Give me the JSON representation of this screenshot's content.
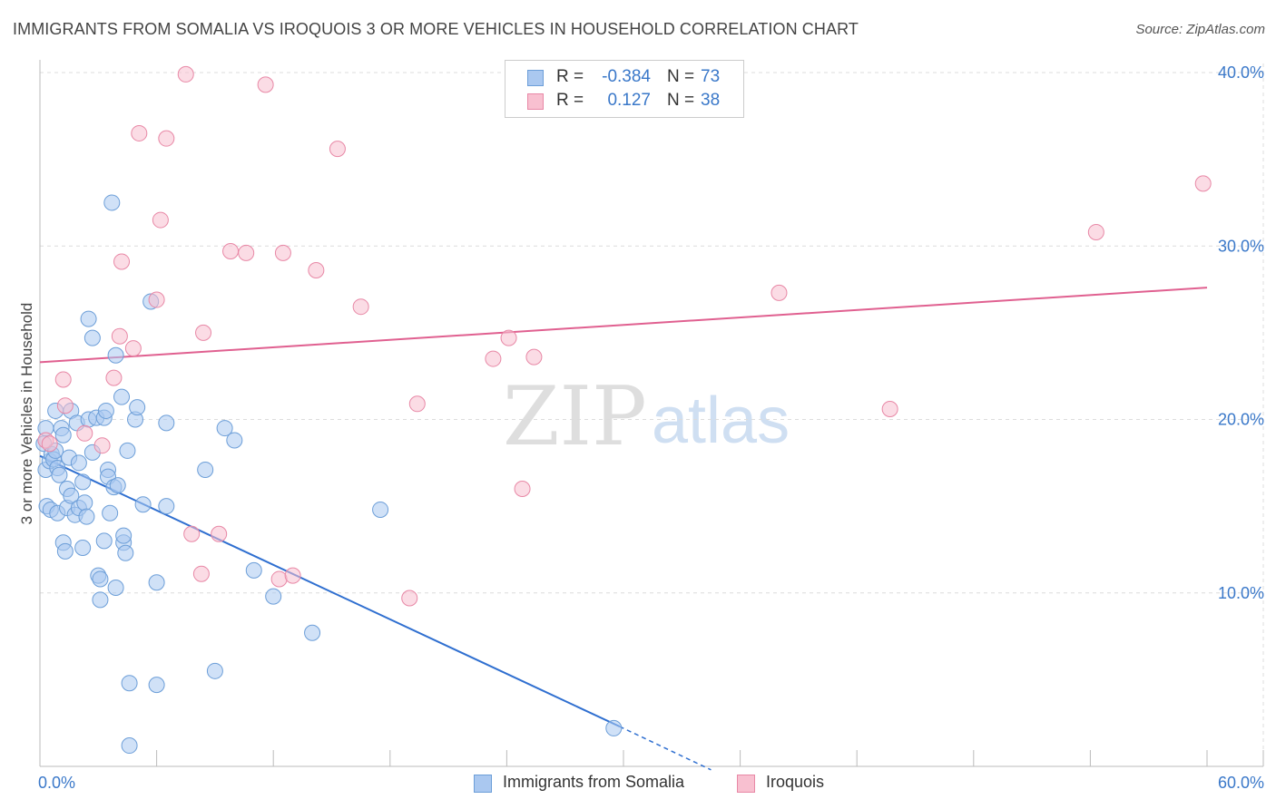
{
  "title": "IMMIGRANTS FROM SOMALIA VS IROQUOIS 3 OR MORE VEHICLES IN HOUSEHOLD CORRELATION CHART",
  "source": "Source: ZipAtlas.com",
  "watermark": {
    "zip": "ZIP",
    "atlas": "atlas"
  },
  "legend_top": [
    {
      "r_label": "R =",
      "r_value": "-0.384",
      "n_label": "N =",
      "n_value": "73"
    },
    {
      "r_label": "R =",
      "r_value": "0.127",
      "n_label": "N =",
      "n_value": "38"
    }
  ],
  "legend_bottom": [
    "Immigrants from Somalia",
    "Iroquois"
  ],
  "colors": {
    "somalia_fill": "#aac8f0",
    "somalia_stroke": "#6c9ed8",
    "somalia_line": "#2f6fd0",
    "iroquois_fill": "#f8c0d0",
    "iroquois_stroke": "#e888a6",
    "iroquois_line": "#e06090",
    "tick_label": "#3a78c9",
    "grid": "#dcdcdc"
  },
  "chart_data": {
    "type": "scatter",
    "title": "IMMIGRANTS FROM SOMALIA VS IROQUOIS 3 OR MORE VEHICLES IN HOUSEHOLD CORRELATION CHART",
    "xlabel": "",
    "ylabel": "3 or more Vehicles in Household",
    "xlim": [
      0,
      60
    ],
    "ylim": [
      0,
      40
    ],
    "x_tick_labels": [
      "0.0%",
      "60.0%"
    ],
    "y_ticks": [
      10,
      20,
      30,
      40
    ],
    "y_tick_labels": [
      "10.0%",
      "20.0%",
      "30.0%",
      "40.0%"
    ],
    "grid": true,
    "legend": "bottom-center",
    "series": [
      {
        "name": "Immigrants from Somalia",
        "r": -0.384,
        "n": 73,
        "points": [
          [
            0.2,
            18.6
          ],
          [
            0.3,
            17.1
          ],
          [
            0.35,
            15.0
          ],
          [
            0.3,
            19.5
          ],
          [
            0.5,
            17.6
          ],
          [
            0.55,
            14.8
          ],
          [
            0.6,
            18.0
          ],
          [
            0.7,
            17.7
          ],
          [
            0.8,
            20.5
          ],
          [
            0.8,
            18.2
          ],
          [
            0.9,
            17.2
          ],
          [
            0.9,
            14.6
          ],
          [
            1.0,
            16.8
          ],
          [
            1.1,
            19.5
          ],
          [
            1.2,
            19.1
          ],
          [
            1.2,
            12.9
          ],
          [
            1.3,
            12.4
          ],
          [
            1.4,
            14.9
          ],
          [
            1.4,
            16.0
          ],
          [
            1.5,
            17.8
          ],
          [
            1.6,
            20.5
          ],
          [
            1.6,
            15.6
          ],
          [
            1.8,
            14.5
          ],
          [
            1.9,
            19.8
          ],
          [
            2.0,
            17.5
          ],
          [
            2.0,
            14.9
          ],
          [
            2.2,
            16.4
          ],
          [
            2.2,
            12.6
          ],
          [
            2.3,
            15.2
          ],
          [
            2.4,
            14.4
          ],
          [
            2.5,
            25.8
          ],
          [
            2.5,
            20.0
          ],
          [
            2.7,
            24.7
          ],
          [
            2.7,
            18.1
          ],
          [
            2.9,
            20.1
          ],
          [
            3.0,
            11.0
          ],
          [
            3.1,
            10.8
          ],
          [
            3.1,
            9.6
          ],
          [
            3.3,
            20.1
          ],
          [
            3.3,
            13.0
          ],
          [
            3.4,
            20.5
          ],
          [
            3.5,
            17.1
          ],
          [
            3.5,
            16.7
          ],
          [
            3.6,
            14.6
          ],
          [
            3.7,
            32.5
          ],
          [
            3.8,
            16.1
          ],
          [
            3.9,
            23.7
          ],
          [
            3.9,
            10.3
          ],
          [
            4.0,
            16.2
          ],
          [
            4.2,
            21.3
          ],
          [
            4.3,
            12.9
          ],
          [
            4.3,
            13.3
          ],
          [
            4.4,
            12.3
          ],
          [
            4.5,
            18.2
          ],
          [
            4.6,
            4.8
          ],
          [
            4.6,
            1.2
          ],
          [
            4.9,
            20.0
          ],
          [
            5.0,
            20.7
          ],
          [
            5.3,
            15.1
          ],
          [
            5.7,
            26.8
          ],
          [
            6.0,
            10.6
          ],
          [
            6.0,
            4.7
          ],
          [
            6.5,
            19.8
          ],
          [
            6.5,
            15.0
          ],
          [
            8.5,
            17.1
          ],
          [
            9.0,
            5.5
          ],
          [
            9.5,
            19.5
          ],
          [
            10.0,
            18.8
          ],
          [
            11.0,
            11.3
          ],
          [
            12.0,
            9.8
          ],
          [
            14.0,
            7.7
          ],
          [
            17.5,
            14.8
          ],
          [
            29.5,
            2.2
          ]
        ]
      },
      {
        "name": "Iroquois",
        "r": 0.127,
        "n": 38,
        "points": [
          [
            0.3,
            18.8
          ],
          [
            0.5,
            18.6
          ],
          [
            1.2,
            22.3
          ],
          [
            1.3,
            20.8
          ],
          [
            2.3,
            19.2
          ],
          [
            3.2,
            18.5
          ],
          [
            3.8,
            22.4
          ],
          [
            4.1,
            24.8
          ],
          [
            4.2,
            29.1
          ],
          [
            4.8,
            24.1
          ],
          [
            5.1,
            36.5
          ],
          [
            6.0,
            26.9
          ],
          [
            6.2,
            31.5
          ],
          [
            6.5,
            36.2
          ],
          [
            7.5,
            39.9
          ],
          [
            7.8,
            13.4
          ],
          [
            8.3,
            11.1
          ],
          [
            8.4,
            25.0
          ],
          [
            9.2,
            13.4
          ],
          [
            9.8,
            29.7
          ],
          [
            10.6,
            29.6
          ],
          [
            11.6,
            39.3
          ],
          [
            12.3,
            10.8
          ],
          [
            12.5,
            29.6
          ],
          [
            13.0,
            11.0
          ],
          [
            14.2,
            28.6
          ],
          [
            15.3,
            35.6
          ],
          [
            16.5,
            26.5
          ],
          [
            19.0,
            9.7
          ],
          [
            19.4,
            20.9
          ],
          [
            23.3,
            23.5
          ],
          [
            24.1,
            24.7
          ],
          [
            24.8,
            16.0
          ],
          [
            25.4,
            23.6
          ],
          [
            38.0,
            27.3
          ],
          [
            43.7,
            20.6
          ],
          [
            54.3,
            30.8
          ],
          [
            59.8,
            33.6
          ]
        ]
      }
    ],
    "trend_lines": [
      {
        "series": "Immigrants from Somalia",
        "x": [
          0,
          29.8
        ],
        "y": [
          17.9,
          2.3
        ],
        "dashed_extension_to": [
          34.5,
          -0.2
        ]
      },
      {
        "series": "Iroquois",
        "x": [
          0,
          60
        ],
        "y": [
          23.3,
          27.6
        ]
      }
    ]
  }
}
